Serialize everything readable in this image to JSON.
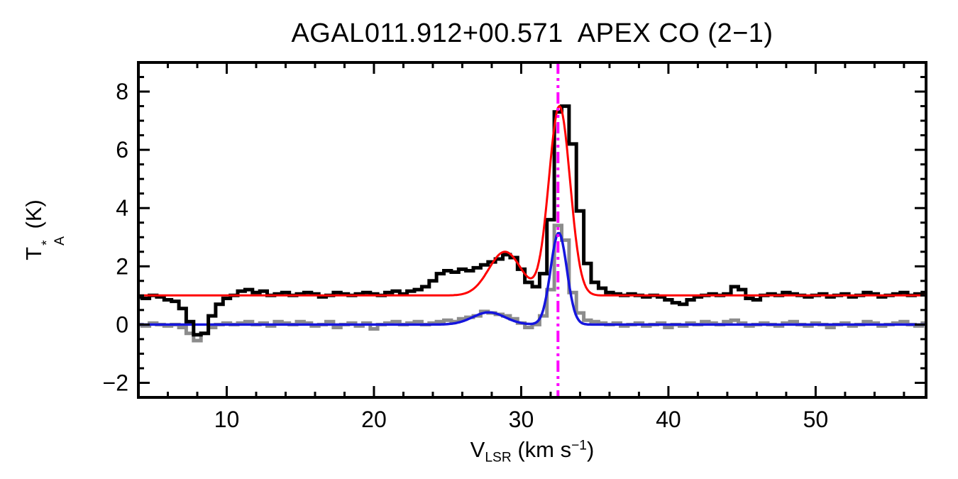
{
  "title": "AGAL011.912+00.571  APEX CO (2−1)",
  "chart_data": {
    "type": "line",
    "title": "AGAL011.912+00.571  APEX CO (2−1)",
    "xlabel_parts": {
      "main": "V",
      "sub": "LSR",
      "mid": " (km s",
      "sup": "−1",
      "end": ")"
    },
    "ylabel_parts": {
      "main": "T",
      "sup": "*",
      "sub": "A",
      "end": " (K)"
    },
    "xlim": [
      4,
      57.5
    ],
    "ylim": [
      -2.5,
      9
    ],
    "grid": false,
    "xticks": {
      "values": [
        10,
        20,
        30,
        40,
        50
      ],
      "labels": [
        "10",
        "20",
        "30",
        "40",
        "50"
      ],
      "minor_step": 2
    },
    "yticks": {
      "values": [
        -2,
        0,
        2,
        4,
        6,
        8
      ],
      "labels": [
        "−2",
        "0",
        "2",
        "4",
        "6",
        "8"
      ],
      "minor_step": 0.5
    },
    "series": [
      {
        "name": "black-spectrum-offset-1K",
        "type": "histogram",
        "color": "#000000",
        "line_width": 5,
        "x_start": 4.0,
        "x_step": 0.5,
        "y": [
          0.95,
          0.9,
          1.0,
          0.95,
          0.85,
          0.8,
          0.55,
          0.1,
          -0.35,
          -0.3,
          0.3,
          0.7,
          0.9,
          1.0,
          1.15,
          1.2,
          1.1,
          1.15,
          1.0,
          1.05,
          1.1,
          1.0,
          1.05,
          1.1,
          1.05,
          0.95,
          1.0,
          1.1,
          1.05,
          1.0,
          1.05,
          1.1,
          1.05,
          1.0,
          1.1,
          1.15,
          1.05,
          1.15,
          1.2,
          1.3,
          1.5,
          1.75,
          1.85,
          1.8,
          1.9,
          1.85,
          1.95,
          2.05,
          2.15,
          2.25,
          2.4,
          2.3,
          1.9,
          1.45,
          1.3,
          1.75,
          3.6,
          7.3,
          7.5,
          6.2,
          3.9,
          2.1,
          1.45,
          1.25,
          1.1,
          1.05,
          1.0,
          1.05,
          1.0,
          0.95,
          1.0,
          0.95,
          0.85,
          0.75,
          0.7,
          0.85,
          0.95,
          1.0,
          1.05,
          1.0,
          1.05,
          1.3,
          1.2,
          0.9,
          0.85,
          1.0,
          1.05,
          1.0,
          1.1,
          1.05,
          1.0,
          0.95,
          1.0,
          1.05,
          0.95,
          1.0,
          1.05,
          0.95,
          1.0,
          1.1,
          1.05,
          0.95,
          1.0,
          1.05,
          1.1,
          1.0,
          1.05,
          1.1
        ]
      },
      {
        "name": "gray-spectrum",
        "type": "histogram",
        "color": "#8c8c8c",
        "line_width": 5,
        "x_start": 4.0,
        "x_step": 0.5,
        "y": [
          0.0,
          -0.05,
          0.05,
          0.0,
          -0.05,
          0.0,
          -0.1,
          -0.3,
          -0.55,
          -0.3,
          -0.1,
          0.0,
          0.05,
          0.0,
          0.05,
          0.1,
          0.0,
          0.05,
          -0.05,
          0.1,
          0.05,
          0.0,
          0.1,
          0.05,
          -0.05,
          0.0,
          0.1,
          -0.1,
          0.0,
          0.05,
          -0.05,
          0.05,
          -0.15,
          0.0,
          0.05,
          0.1,
          0.0,
          0.05,
          0.1,
          0.0,
          0.05,
          0.1,
          0.15,
          0.1,
          0.2,
          0.25,
          0.3,
          0.45,
          0.4,
          0.35,
          0.3,
          0.2,
          0.05,
          -0.1,
          0.0,
          0.3,
          1.2,
          3.4,
          2.9,
          1.1,
          0.4,
          0.15,
          0.1,
          0.05,
          0.0,
          0.05,
          -0.05,
          0.0,
          0.05,
          -0.05,
          0.0,
          0.05,
          -0.1,
          0.0,
          -0.05,
          0.05,
          0.0,
          0.1,
          0.05,
          0.0,
          0.1,
          0.15,
          0.05,
          -0.05,
          0.0,
          0.05,
          0.0,
          -0.05,
          0.05,
          0.1,
          0.0,
          -0.05,
          0.05,
          0.0,
          -0.1,
          0.0,
          0.05,
          -0.05,
          0.0,
          0.1,
          0.05,
          -0.05,
          0.0,
          0.05,
          0.1,
          0.0,
          -0.05,
          0.05
        ]
      }
    ],
    "fits": [
      {
        "name": "red-gaussian-fit",
        "color": "#ff0000",
        "line_width": 3,
        "baseline": 1.0,
        "components": [
          {
            "center": 28.9,
            "amplitude": 1.5,
            "sigma": 1.1
          },
          {
            "center": 32.6,
            "amplitude": 6.5,
            "sigma": 0.72
          }
        ]
      },
      {
        "name": "blue-gaussian-fit",
        "color": "#1515dd",
        "line_width": 3.5,
        "baseline": 0.0,
        "components": [
          {
            "center": 27.8,
            "amplitude": 0.42,
            "sigma": 1.1
          },
          {
            "center": 32.55,
            "amplitude": 3.15,
            "sigma": 0.55
          }
        ]
      }
    ],
    "vline": {
      "name": "velocity-marker",
      "x": 32.5,
      "color": "#ff00ff",
      "style": "dash-dot",
      "line_width": 4
    },
    "frame_color": "#000000"
  }
}
